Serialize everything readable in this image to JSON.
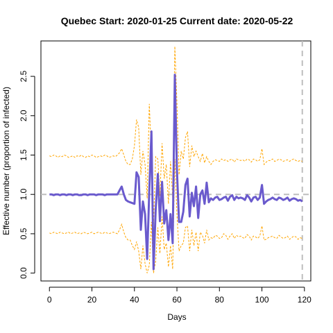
{
  "chart_data": {
    "type": "line",
    "title": "Quebec Start:  2020-01-25   Current date:  2020-05-22",
    "xlabel": "Days",
    "ylabel": "Effective number (proportion of infected)",
    "xlim": [
      -4,
      123
    ],
    "ylim": [
      -0.1,
      2.95
    ],
    "xticks": [
      0,
      20,
      40,
      60,
      80,
      100,
      120
    ],
    "yticks": [
      0.0,
      0.5,
      1.0,
      1.5,
      2.0,
      2.5
    ],
    "reference_lines": {
      "horizontal_y": 1.0,
      "vertical_x": 119
    },
    "colors": {
      "estimate": "#6a5acd",
      "bounds": "#ffa500",
      "reference": "#bebebe"
    },
    "x": [
      0,
      1,
      2,
      3,
      4,
      5,
      6,
      7,
      8,
      9,
      10,
      11,
      12,
      13,
      14,
      15,
      16,
      17,
      18,
      19,
      20,
      21,
      22,
      23,
      24,
      25,
      26,
      27,
      28,
      29,
      30,
      31,
      32,
      33,
      34,
      35,
      36,
      37,
      38,
      39,
      40,
      41,
      42,
      43,
      44,
      45,
      46,
      47,
      48,
      49,
      50,
      51,
      52,
      53,
      54,
      55,
      56,
      57,
      58,
      59,
      60,
      61,
      62,
      63,
      64,
      65,
      66,
      67,
      68,
      69,
      70,
      71,
      72,
      73,
      74,
      75,
      76,
      77,
      78,
      79,
      80,
      81,
      82,
      83,
      84,
      85,
      86,
      87,
      88,
      89,
      90,
      91,
      92,
      93,
      94,
      95,
      96,
      97,
      98,
      99,
      100,
      101,
      102,
      103,
      104,
      105,
      106,
      107,
      108,
      109,
      110,
      111,
      112,
      113,
      114,
      115,
      116,
      117,
      118,
      119
    ],
    "series": [
      {
        "values": [
          1.0,
          1.0,
          0.99,
          1.0,
          1.0,
          0.99,
          1.0,
          1.0,
          0.99,
          1.0,
          1.0,
          0.99,
          1.0,
          1.0,
          0.99,
          0.99,
          1.0,
          1.0,
          0.99,
          1.0,
          1.0,
          1.0,
          0.99,
          1.0,
          1.0,
          1.0,
          0.99,
          1.0,
          1.0,
          1.0,
          1.0,
          1.0,
          1.0,
          1.05,
          1.1,
          1.0,
          0.93,
          0.91,
          0.9,
          0.89,
          0.88,
          1.28,
          1.22,
          0.55,
          0.91,
          0.75,
          0.18,
          1.05,
          1.8,
          0.05,
          0.8,
          1.26,
          0.66,
          1.16,
          0.63,
          0.8,
          0.42,
          0.75,
          0.38,
          2.52,
          1.32,
          0.65,
          0.65,
          0.78,
          1.12,
          1.2,
          0.72,
          1.02,
          0.85,
          1.1,
          0.7,
          1.0,
          1.05,
          0.88,
          1.15,
          0.9,
          0.95,
          0.93,
          0.96,
          0.97,
          0.93,
          0.94,
          0.96,
          0.97,
          0.92,
          0.97,
          0.99,
          0.93,
          0.97,
          0.95,
          0.96,
          0.95,
          0.93,
          0.99,
          0.96,
          0.91,
          0.96,
          0.97,
          0.93,
          0.96,
          1.12,
          0.88,
          0.91,
          0.93,
          0.94,
          0.96,
          0.94,
          0.93,
          0.96,
          0.95,
          0.93,
          0.94,
          0.96,
          0.92,
          0.94,
          0.95,
          0.94,
          0.92,
          0.93,
          0.91
        ]
      },
      {
        "values": [
          1.49,
          1.48,
          1.5,
          1.49,
          1.47,
          1.49,
          1.48,
          1.5,
          1.49,
          1.47,
          1.48,
          1.49,
          1.47,
          1.49,
          1.48,
          1.5,
          1.48,
          1.47,
          1.49,
          1.48,
          1.5,
          1.49,
          1.47,
          1.48,
          1.49,
          1.48,
          1.5,
          1.49,
          1.47,
          1.48,
          1.49,
          1.48,
          1.5,
          1.53,
          1.58,
          1.5,
          1.42,
          1.38,
          1.38,
          1.45,
          1.62,
          1.95,
          1.85,
          1.25,
          1.55,
          1.38,
          0.95,
          2.15,
          1.5,
          0.62,
          1.48,
          1.45,
          0.98,
          1.65,
          1.2,
          1.38,
          0.88,
          1.42,
          0.95,
          2.88,
          2.18,
          1.25,
          1.55,
          1.45,
          1.72,
          1.8,
          1.35,
          1.62,
          1.48,
          1.55,
          1.48,
          1.42,
          1.52,
          1.4,
          1.48,
          1.42,
          1.38,
          1.42,
          1.44,
          1.43,
          1.42,
          1.45,
          1.43,
          1.44,
          1.42,
          1.44,
          1.45,
          1.41,
          1.45,
          1.44,
          1.43,
          1.44,
          1.42,
          1.45,
          1.44,
          1.41,
          1.45,
          1.44,
          1.42,
          1.44,
          1.58,
          1.38,
          1.41,
          1.43,
          1.43,
          1.45,
          1.42,
          1.43,
          1.45,
          1.44,
          1.42,
          1.43,
          1.44,
          1.42,
          1.44,
          1.45,
          1.43,
          1.42,
          1.43,
          1.42
        ]
      },
      {
        "values": [
          0.51,
          0.5,
          0.52,
          0.51,
          0.5,
          0.52,
          0.51,
          0.5,
          0.51,
          0.52,
          0.5,
          0.51,
          0.52,
          0.5,
          0.51,
          0.5,
          0.52,
          0.51,
          0.5,
          0.51,
          0.52,
          0.5,
          0.51,
          0.52,
          0.51,
          0.5,
          0.52,
          0.51,
          0.5,
          0.51,
          0.52,
          0.51,
          0.5,
          0.55,
          0.62,
          0.52,
          0.45,
          0.42,
          0.42,
          0.35,
          0.3,
          0.4,
          0.28,
          0.05,
          0.35,
          0.12,
          0.0,
          0.1,
          0.65,
          0.0,
          0.15,
          0.58,
          0.25,
          0.72,
          0.3,
          0.38,
          0.08,
          0.35,
          0.05,
          1.45,
          0.75,
          0.28,
          0.35,
          0.38,
          0.58,
          0.6,
          0.28,
          0.55,
          0.35,
          0.52,
          0.28,
          0.52,
          0.48,
          0.38,
          0.55,
          0.42,
          0.45,
          0.44,
          0.48,
          0.47,
          0.44,
          0.45,
          0.5,
          0.48,
          0.43,
          0.47,
          0.5,
          0.44,
          0.48,
          0.46,
          0.47,
          0.45,
          0.44,
          0.49,
          0.47,
          0.42,
          0.47,
          0.46,
          0.44,
          0.47,
          0.6,
          0.42,
          0.43,
          0.45,
          0.46,
          0.47,
          0.45,
          0.44,
          0.48,
          0.46,
          0.44,
          0.45,
          0.47,
          0.43,
          0.45,
          0.47,
          0.46,
          0.43,
          0.45,
          0.44
        ]
      }
    ]
  }
}
